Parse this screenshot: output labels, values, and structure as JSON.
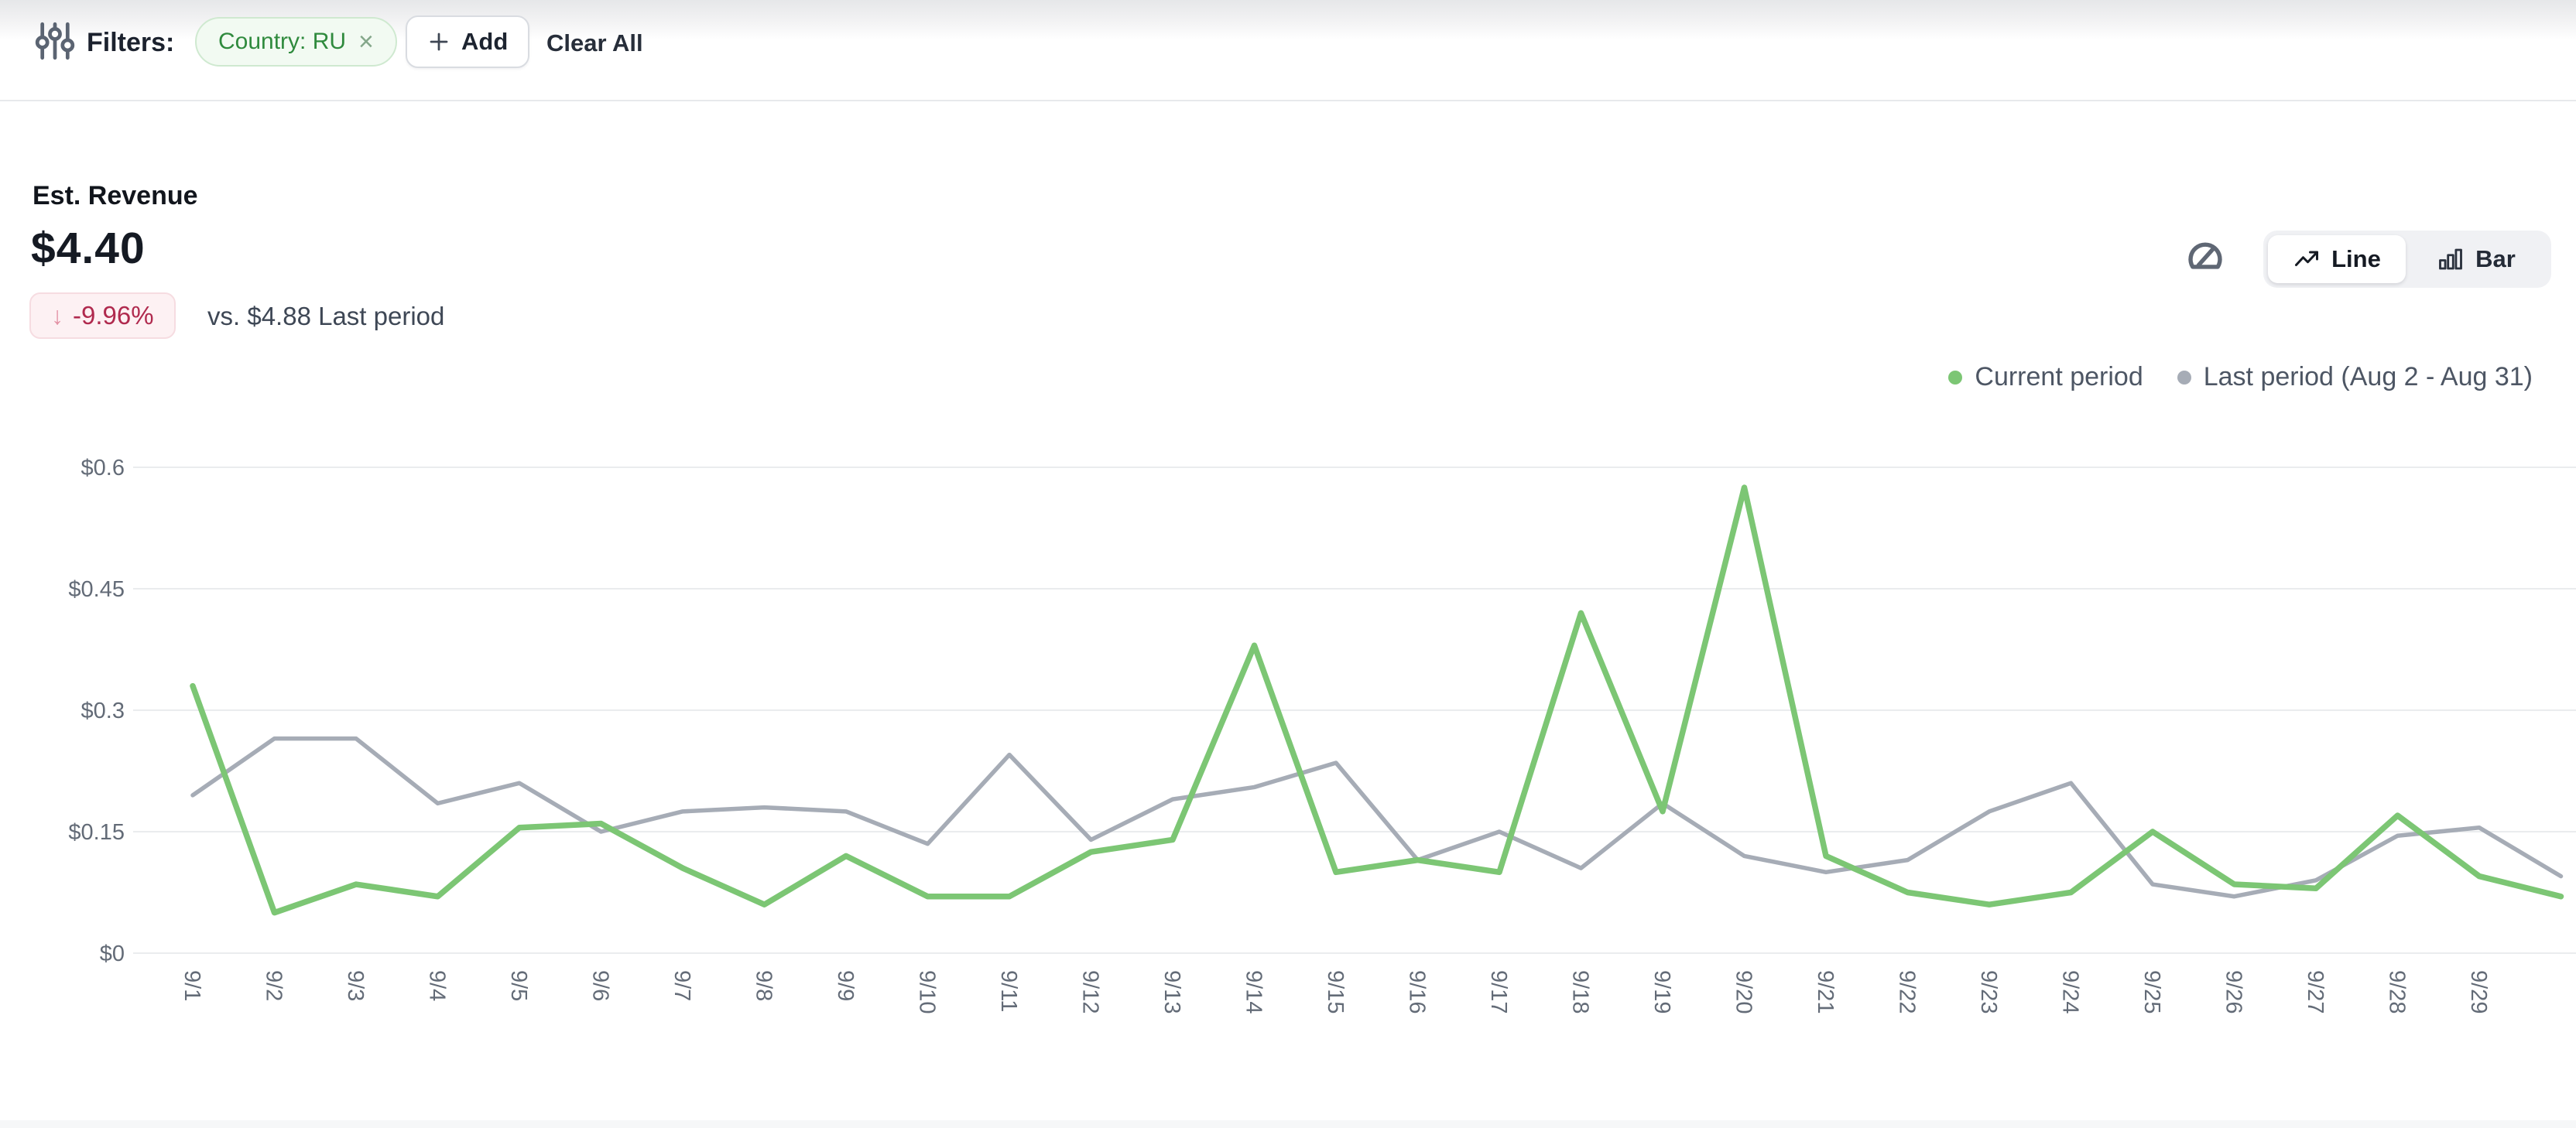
{
  "filter_bar": {
    "label": "Filters:",
    "chip": {
      "text": "Country: RU",
      "close": "×"
    },
    "add_label": "Add",
    "clear_all_label": "Clear All"
  },
  "metric": {
    "title": "Est. Revenue",
    "value": "$4.40",
    "delta_arrow": "↓",
    "delta": "-9.96%",
    "comparison": "vs. $4.88 Last period"
  },
  "view_toggle": {
    "line_label": "Line",
    "bar_label": "Bar"
  },
  "legend": {
    "current": {
      "label": "Current period",
      "color": "#7cc674"
    },
    "last": {
      "label": "Last period (Aug 2 - Aug 31)",
      "color": "#a6acb6"
    }
  },
  "chart_data": {
    "type": "line",
    "categories": [
      "9/1",
      "9/2",
      "9/3",
      "9/4",
      "9/5",
      "9/6",
      "9/7",
      "9/8",
      "9/9",
      "9/10",
      "9/11",
      "9/12",
      "9/13",
      "9/14",
      "9/15",
      "9/16",
      "9/17",
      "9/18",
      "9/19",
      "9/20",
      "9/21",
      "9/22",
      "9/23",
      "9/24",
      "9/25",
      "9/26",
      "9/27",
      "9/28",
      "9/29",
      ""
    ],
    "series": [
      {
        "name": "Current period",
        "color": "#7cc674",
        "values": [
          0.33,
          0.05,
          0.085,
          0.07,
          0.155,
          0.16,
          0.105,
          0.06,
          0.12,
          0.07,
          0.07,
          0.125,
          0.14,
          0.38,
          0.1,
          0.115,
          0.1,
          0.42,
          0.175,
          0.575,
          0.12,
          0.075,
          0.06,
          0.075,
          0.15,
          0.085,
          0.08,
          0.17,
          0.095,
          0.07
        ]
      },
      {
        "name": "Last period (Aug 2 - Aug 31)",
        "color": "#a6acb6",
        "values": [
          0.195,
          0.265,
          0.265,
          0.185,
          0.21,
          0.15,
          0.175,
          0.18,
          0.175,
          0.135,
          0.245,
          0.14,
          0.19,
          0.205,
          0.235,
          0.115,
          0.15,
          0.105,
          0.185,
          0.12,
          0.1,
          0.115,
          0.175,
          0.21,
          0.085,
          0.07,
          0.09,
          0.145,
          0.155,
          0.095
        ]
      }
    ],
    "y_ticks": [
      {
        "value": 0,
        "label": "$0"
      },
      {
        "value": 0.15,
        "label": "$0.15"
      },
      {
        "value": 0.3,
        "label": "$0.3"
      },
      {
        "value": 0.45,
        "label": "$0.45"
      },
      {
        "value": 0.6,
        "label": "$0.6"
      }
    ],
    "ylim": [
      0,
      0.6
    ],
    "xlabel": "",
    "ylabel": "",
    "grid": true,
    "legend_position": "top-right"
  }
}
